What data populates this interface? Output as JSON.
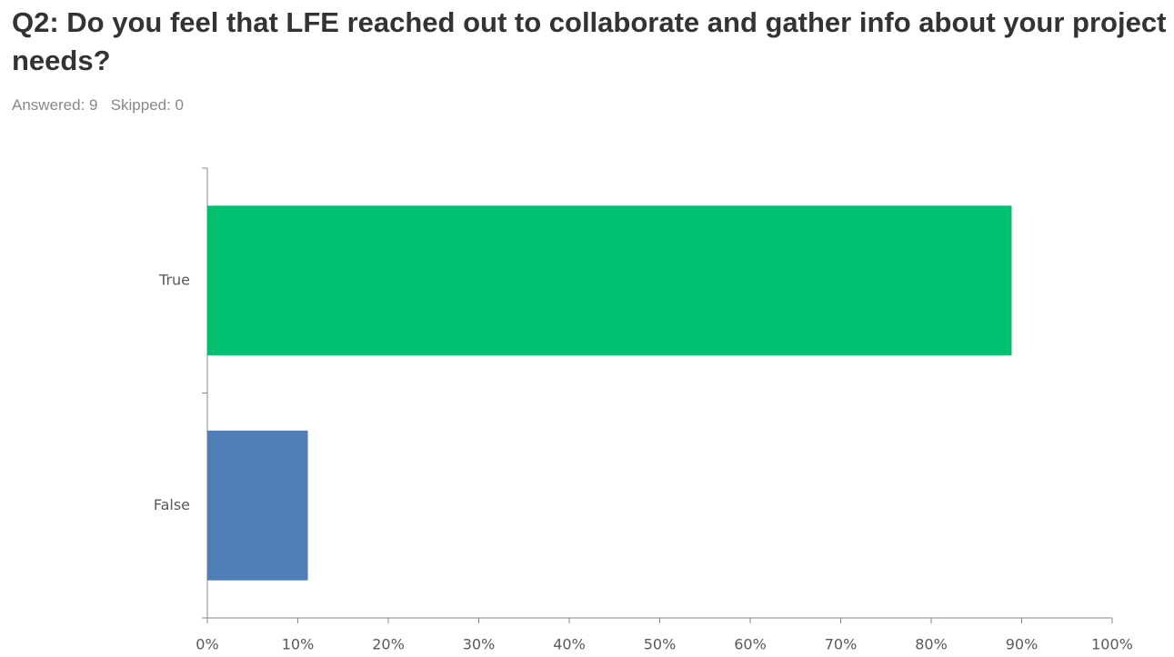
{
  "chart_data": {
    "type": "hbar",
    "title": "Q2: Do you feel that LFE reached out to collaborate and gather info about your project needs?",
    "subtitle": "Answered: 9   Skipped: 0",
    "categories": [
      "True",
      "False"
    ],
    "values": [
      88.89,
      11.11
    ],
    "colors": [
      "#00bf6f",
      "#4f7db5"
    ],
    "xlim": [
      0,
      100
    ],
    "xticks": [
      {
        "value": 0,
        "label": "0%"
      },
      {
        "value": 10,
        "label": "10%"
      },
      {
        "value": 20,
        "label": "20%"
      },
      {
        "value": 30,
        "label": "30%"
      },
      {
        "value": 40,
        "label": "40%"
      },
      {
        "value": 50,
        "label": "50%"
      },
      {
        "value": 60,
        "label": "60%"
      },
      {
        "value": 70,
        "label": "70%"
      },
      {
        "value": 80,
        "label": "80%"
      },
      {
        "value": 90,
        "label": "90%"
      },
      {
        "value": 100,
        "label": "100%"
      }
    ],
    "grid": false
  }
}
